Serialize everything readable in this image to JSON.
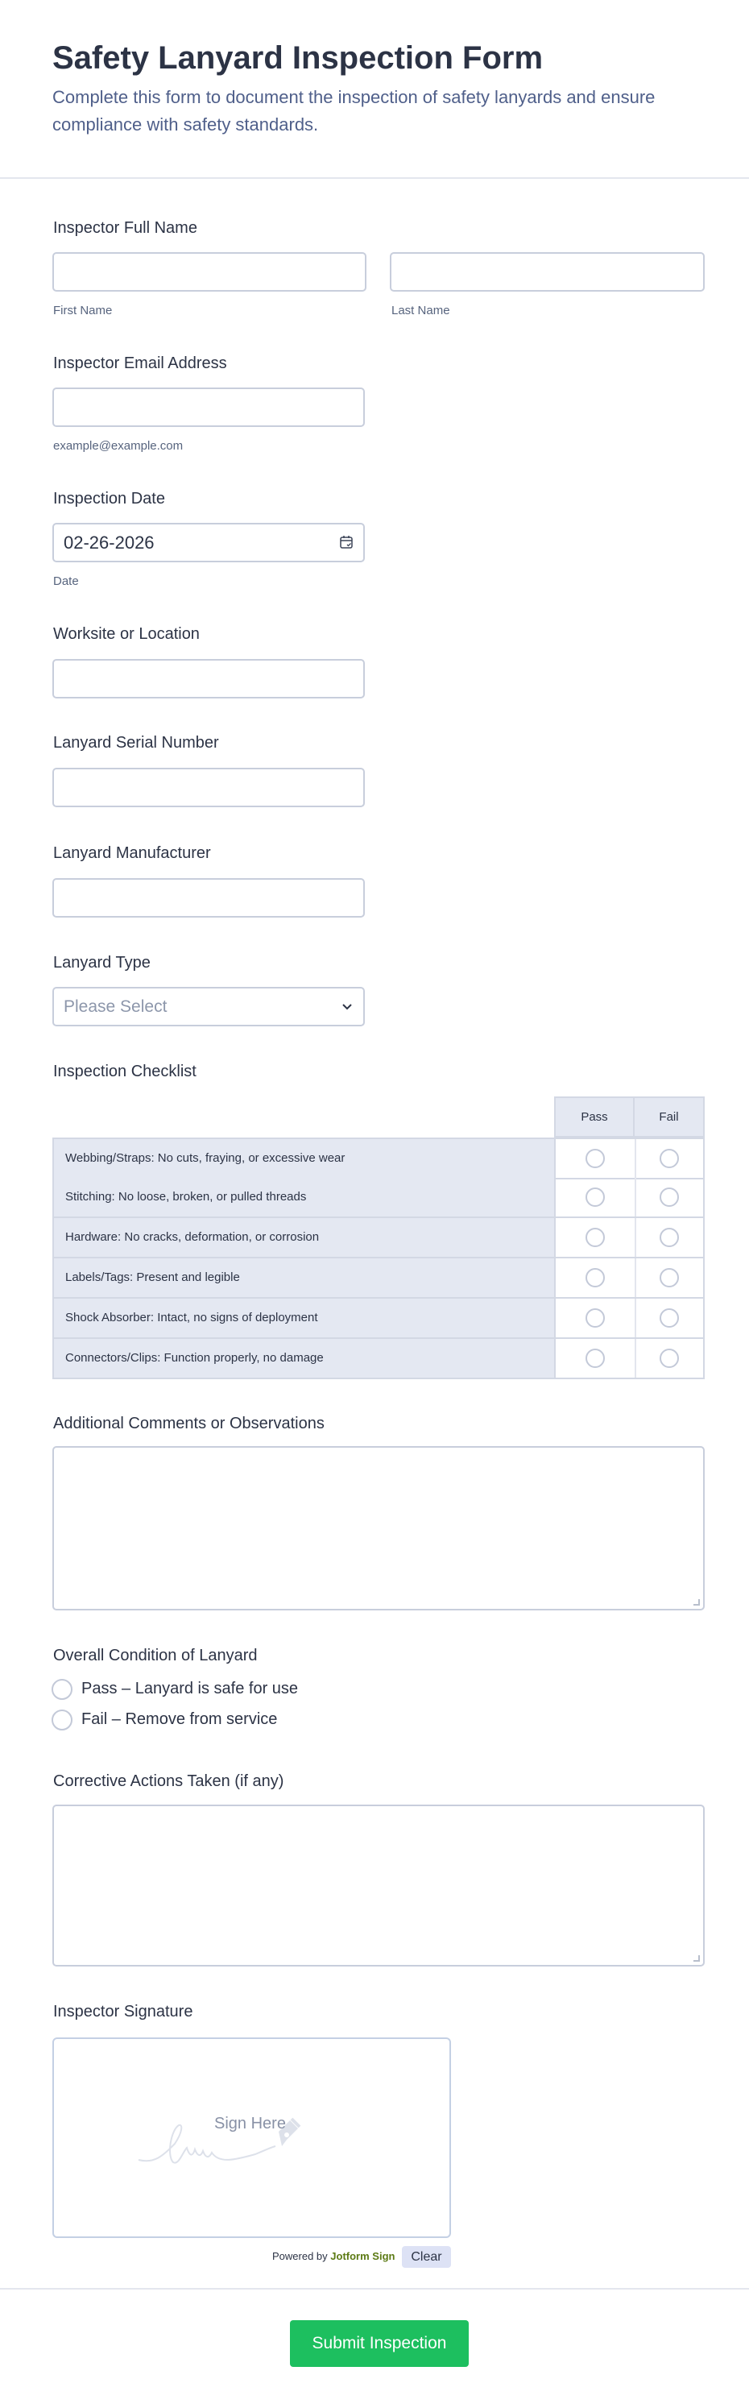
{
  "header": {
    "title": "Safety Lanyard Inspection Form",
    "subtitle": "Complete this form to document the inspection of safety lanyards and ensure compliance with safety standards."
  },
  "fields": {
    "full_name": {
      "label": "Inspector Full Name",
      "first_sublabel": "First Name",
      "last_sublabel": "Last Name",
      "first_value": "",
      "last_value": ""
    },
    "email": {
      "label": "Inspector Email Address",
      "sublabel": "example@example.com",
      "value": ""
    },
    "date": {
      "label": "Inspection Date",
      "value": "02-26-2026",
      "sublabel": "Date",
      "icon": "calendar-icon"
    },
    "worksite": {
      "label": "Worksite or Location",
      "value": ""
    },
    "serial": {
      "label": "Lanyard Serial Number",
      "value": ""
    },
    "manufacturer": {
      "label": "Lanyard Manufacturer",
      "value": ""
    },
    "type": {
      "label": "Lanyard Type",
      "placeholder": "Please Select",
      "icon": "chevron-down-icon"
    }
  },
  "checklist": {
    "label": "Inspection Checklist",
    "columns": [
      "Pass",
      "Fail"
    ],
    "rows": [
      "Webbing/Straps: No cuts, fraying, or excessive wear",
      "Stitching: No loose, broken, or pulled threads",
      "Hardware: No cracks, deformation, or corrosion",
      "Labels/Tags: Present and legible",
      "Shock Absorber: Intact, no signs of deployment",
      "Connectors/Clips: Function properly, no damage"
    ]
  },
  "comments": {
    "label": "Additional Comments or Observations",
    "value": ""
  },
  "condition": {
    "label": "Overall Condition of Lanyard",
    "options": [
      "Pass – Lanyard is safe for use",
      "Fail – Remove from service"
    ]
  },
  "corrective": {
    "label": "Corrective Actions Taken (if any)",
    "value": ""
  },
  "signature": {
    "label": "Inspector Signature",
    "placeholder": "Sign Here",
    "powered_by": "Powered by",
    "brand": "Jotform Sign",
    "clear_label": "Clear"
  },
  "submit": {
    "label": "Submit Inspection"
  },
  "colors": {
    "submit": "#1dbf5f",
    "brand_sign": "#6a8a1a",
    "table_header": "#e4e8f2"
  }
}
